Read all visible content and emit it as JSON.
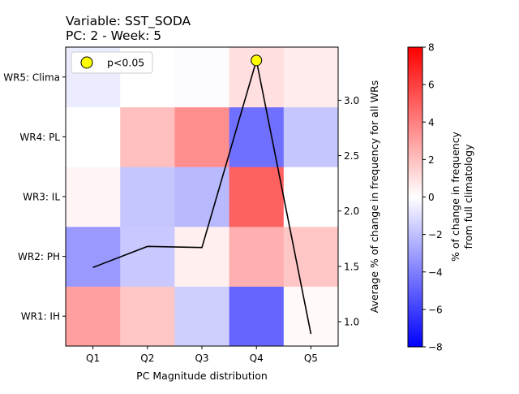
{
  "chart_data": {
    "type": "heatmap",
    "title_line1": "Variable: SST_SODA",
    "title_line2": "PC: 2 - Week: 5",
    "xlabel": "PC Magnitude distribution",
    "x_categories": [
      "Q1",
      "Q2",
      "Q3",
      "Q4",
      "Q5"
    ],
    "y_categories": [
      "WR1: IH",
      "WR2: PH",
      "WR3: IL",
      "WR4: PL",
      "WR5: Clima"
    ],
    "heatmap_values": [
      [
        3.0,
        1.8,
        -1.5,
        -4.8,
        0.2
      ],
      [
        -3.2,
        -1.7,
        0.5,
        2.5,
        1.8
      ],
      [
        0.3,
        -1.8,
        -2.2,
        5.0,
        0.0
      ],
      [
        0.0,
        2.0,
        3.5,
        -4.5,
        -1.8
      ],
      [
        -0.6,
        0.0,
        -0.1,
        1.0,
        0.6
      ]
    ],
    "line": {
      "ylabel": "Average % of change in frequency for all WRs",
      "y_ticks": [
        1.0,
        1.5,
        2.0,
        2.5,
        3.0
      ],
      "ylim": [
        0.78,
        3.48
      ],
      "values": [
        1.49,
        1.68,
        1.67,
        3.36,
        0.89
      ],
      "color": "#000000"
    },
    "significance": {
      "legend_label": "p<0.05",
      "marker_color": "#ffff00",
      "points": [
        {
          "category": "Q4",
          "value": 3.36
        }
      ]
    },
    "colorbar": {
      "label_line1": "% of change in frequency",
      "label_line2": "from full climatology",
      "min": -8,
      "max": 8,
      "ticks": [
        "8",
        "6",
        "4",
        "2",
        "0",
        "−2",
        "−4",
        "−6",
        "−8"
      ],
      "colormap": "bwr"
    }
  }
}
